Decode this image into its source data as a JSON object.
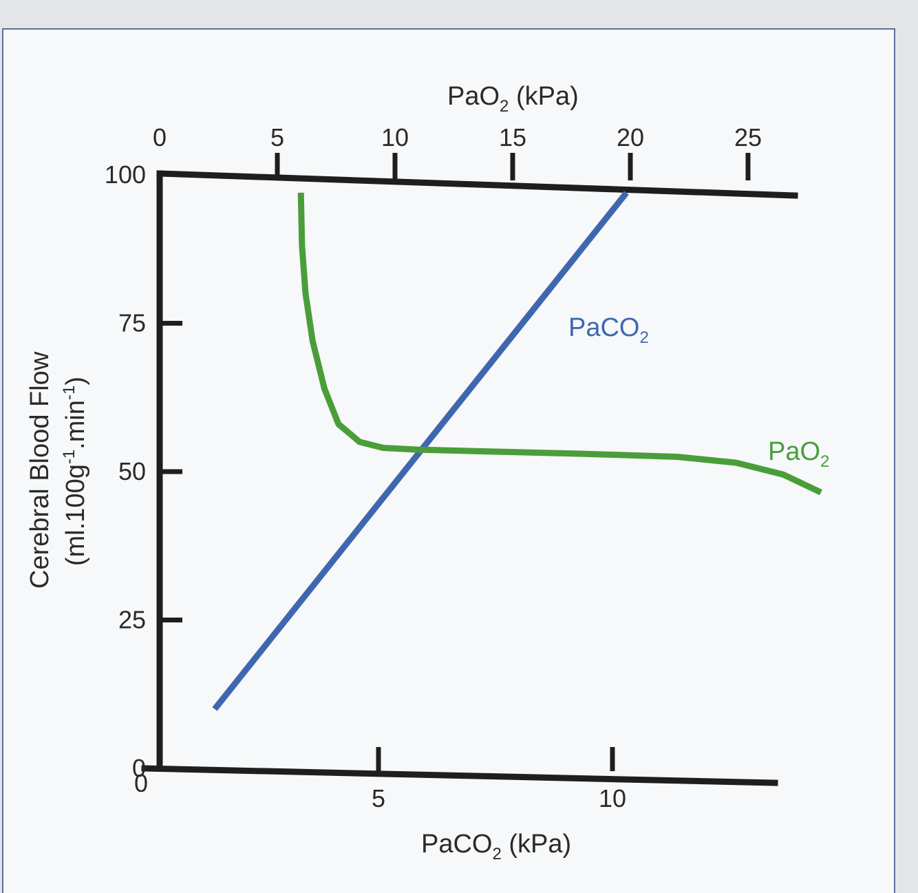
{
  "chart_data": {
    "type": "line",
    "ylabel_line1": "Cerebral Blood Flow",
    "ylabel_line2": "(ml.100g",
    "ylabel_line2_sup1": "-1",
    "ylabel_line2_mid": ".min",
    "ylabel_line2_sup2": "-1",
    "ylabel_line2_end": ")",
    "ylim": [
      0,
      100
    ],
    "yticks": [
      "0",
      "25",
      "50",
      "75",
      "100"
    ],
    "x_bottom": {
      "label_pre": "PaCO",
      "label_sub": "2",
      "label_post": " (kPa)",
      "origin_label": "0",
      "ticks": [
        "5",
        "10"
      ],
      "xlim": [
        0,
        13.5
      ]
    },
    "x_top": {
      "label_pre": "PaO",
      "label_sub": "2",
      "label_post": " (kPa)",
      "ticks": [
        "0",
        "5",
        "10",
        "15",
        "20",
        "25"
      ],
      "xlim": [
        0,
        27.5
      ]
    },
    "series": [
      {
        "name_pre": "PaCO",
        "name_sub": "2",
        "axis": "bottom",
        "color": "#3f67b0",
        "points": [
          [
            1.5,
            10
          ],
          [
            10.3,
            97
          ]
        ]
      },
      {
        "name_pre": "PaO",
        "name_sub": "2",
        "axis": "top",
        "color": "#4a9e3a",
        "points": [
          [
            6.0,
            97
          ],
          [
            6.05,
            88
          ],
          [
            6.2,
            80
          ],
          [
            6.5,
            72
          ],
          [
            7.0,
            64
          ],
          [
            7.6,
            58
          ],
          [
            8.5,
            55
          ],
          [
            9.5,
            54
          ],
          [
            11,
            53.7
          ],
          [
            14,
            53.4
          ],
          [
            18,
            53
          ],
          [
            22,
            52.5
          ],
          [
            24.5,
            51.5
          ],
          [
            26.5,
            49.5
          ],
          [
            28.1,
            46.5
          ]
        ]
      }
    ]
  }
}
